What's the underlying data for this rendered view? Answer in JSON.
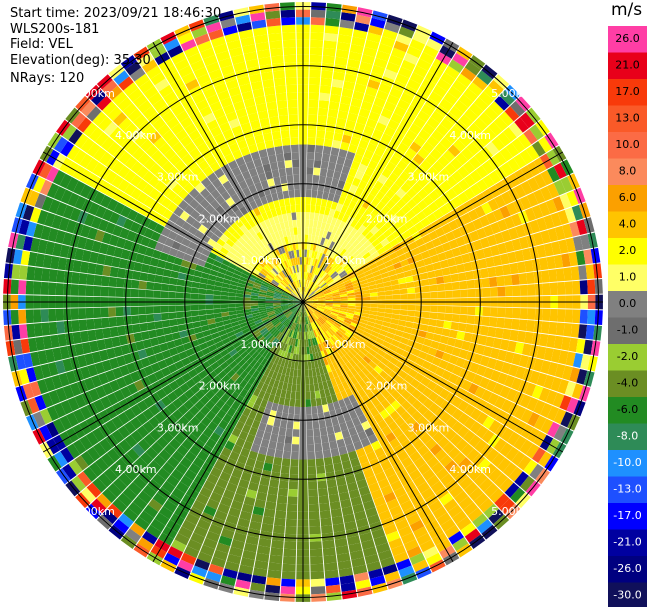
{
  "header": {
    "start_time": "Start time: 2023/09/21 18:46:30",
    "instrument": "WLS200s-181",
    "field": "Field: VEL",
    "elevation": "Elevation(deg): 35.30",
    "nrays": "NRays: 120"
  },
  "chart_data": {
    "type": "heatmap",
    "projection": "polar-ppi",
    "field": "VEL",
    "units": "m/s",
    "n_rays": 120,
    "elevation_deg": 35.3,
    "max_range_km": 5.0,
    "range_ring_labels": [
      "1.00km",
      "2.00km",
      "3.00km",
      "4.00km",
      "5.00km"
    ],
    "colorbar": {
      "unit_label": "m/s",
      "levels": [
        {
          "label": "26.0",
          "color": "#ff3ea5"
        },
        {
          "label": "21.0",
          "color": "#e8001a"
        },
        {
          "label": "17.0",
          "color": "#f83a0a"
        },
        {
          "label": "13.0",
          "color": "#fa5a28"
        },
        {
          "label": "10.0",
          "color": "#fb6b45"
        },
        {
          "label": "8.0",
          "color": "#fb8a5c"
        },
        {
          "label": "6.0",
          "color": "#fba000"
        },
        {
          "label": "4.0",
          "color": "#ffc400"
        },
        {
          "label": "2.0",
          "color": "#ffff00"
        },
        {
          "label": "1.0",
          "color": "#ffff66"
        },
        {
          "label": "0.0",
          "color": "#808080"
        },
        {
          "label": "-1.0",
          "color": "#6e6e6e"
        },
        {
          "label": "-2.0",
          "color": "#9acd32"
        },
        {
          "label": "-4.0",
          "color": "#6b8e23"
        },
        {
          "label": "-6.0",
          "color": "#228b22"
        },
        {
          "label": "-8.0",
          "color": "#2e8b57"
        },
        {
          "label": "-10.0",
          "color": "#1e90ff"
        },
        {
          "label": "-13.0",
          "color": "#1e50ff"
        },
        {
          "label": "-17.0",
          "color": "#0000ff"
        },
        {
          "label": "-21.0",
          "color": "#0000a0"
        },
        {
          "label": "-26.0",
          "color": "#000080"
        },
        {
          "label": "-30.0",
          "color": "#10105a"
        }
      ]
    },
    "dominant_sectors": [
      {
        "azimuth_range_deg": [
          300,
          60
        ],
        "range_km": [
          1.5,
          4.6
        ],
        "velocity": 2.0
      },
      {
        "azimuth_range_deg": [
          60,
          160
        ],
        "range_km": [
          1.0,
          4.6
        ],
        "velocity": 4.0
      },
      {
        "azimuth_range_deg": [
          160,
          210
        ],
        "range_km": [
          1.0,
          4.6
        ],
        "velocity": -4.0
      },
      {
        "azimuth_range_deg": [
          210,
          300
        ],
        "range_km": [
          1.0,
          4.6
        ],
        "velocity": -6.0
      }
    ]
  }
}
